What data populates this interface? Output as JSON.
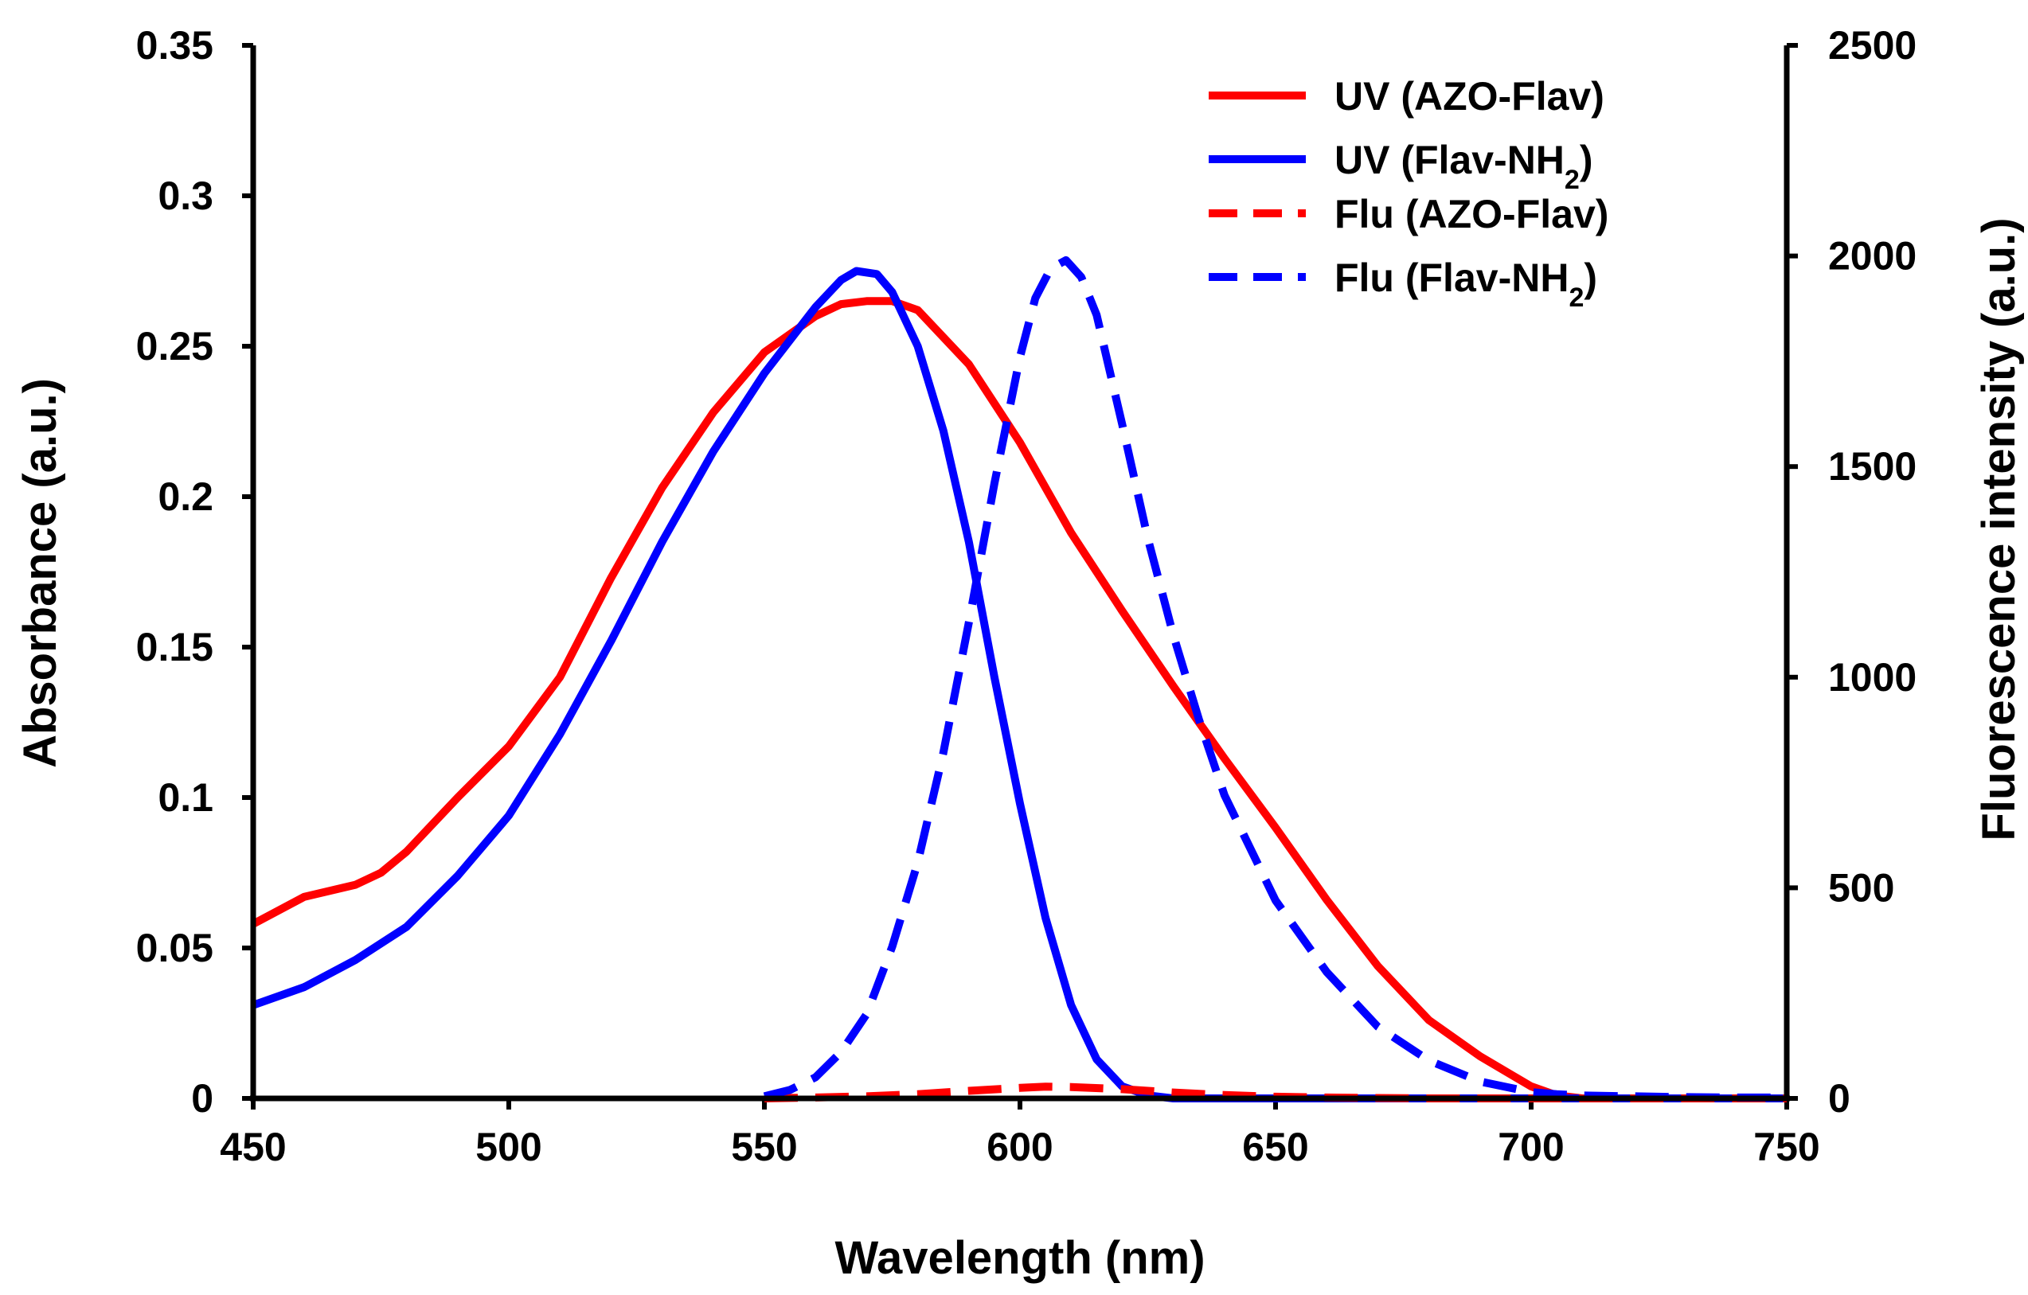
{
  "chart_data": {
    "type": "line",
    "title": "",
    "xlabel": "Wavelength (nm)",
    "ylabel": "Absorbance (a.u.)",
    "y2label": "Fluorescence intensity (a.u.)",
    "xlim": [
      450,
      750
    ],
    "ylim": [
      0,
      0.35
    ],
    "y2lim": [
      0,
      2500
    ],
    "x_ticks": [
      "450",
      "500",
      "550",
      "600",
      "650",
      "700",
      "750"
    ],
    "y_ticks": [
      "0",
      "0.05",
      "0.1",
      "0.15",
      "0.2",
      "0.25",
      "0.3",
      "0.35"
    ],
    "y2_ticks": [
      "0",
      "500",
      "1000",
      "1500",
      "2000",
      "2500"
    ],
    "legend_position": "top-right",
    "series": [
      {
        "name": "UV (AZO-Flav)",
        "legend_main": "UV (AZO-Flav)",
        "legend_sub": "",
        "legend_tail": "",
        "axis": "left",
        "color": "#ff0000",
        "dash": "solid",
        "x": [
          450,
          460,
          470,
          475,
          480,
          490,
          500,
          510,
          520,
          530,
          540,
          550,
          560,
          565,
          570,
          575,
          580,
          590,
          600,
          610,
          620,
          630,
          640,
          650,
          660,
          670,
          680,
          690,
          700,
          705,
          710,
          720,
          730,
          740,
          750
        ],
        "y": [
          0.058,
          0.067,
          0.071,
          0.075,
          0.082,
          0.1,
          0.117,
          0.14,
          0.173,
          0.203,
          0.228,
          0.248,
          0.26,
          0.264,
          0.265,
          0.265,
          0.262,
          0.244,
          0.218,
          0.188,
          0.162,
          0.137,
          0.113,
          0.09,
          0.066,
          0.044,
          0.026,
          0.014,
          0.004,
          0.001,
          0.0,
          0.0,
          0.0,
          0.0,
          0.0
        ]
      },
      {
        "name": "UV (Flav-NH2)",
        "legend_main": "UV (Flav-NH",
        "legend_sub": "2",
        "legend_tail": ")",
        "axis": "left",
        "color": "#0000ff",
        "dash": "solid",
        "x": [
          450,
          460,
          470,
          480,
          490,
          500,
          510,
          520,
          530,
          540,
          550,
          560,
          565,
          568,
          572,
          575,
          580,
          585,
          590,
          595,
          600,
          605,
          610,
          615,
          620,
          625,
          630,
          640,
          650,
          700,
          750
        ],
        "y": [
          0.031,
          0.037,
          0.046,
          0.057,
          0.074,
          0.094,
          0.121,
          0.152,
          0.185,
          0.215,
          0.241,
          0.263,
          0.272,
          0.275,
          0.274,
          0.268,
          0.25,
          0.222,
          0.185,
          0.14,
          0.098,
          0.06,
          0.031,
          0.013,
          0.004,
          0.001,
          0.0,
          0.0,
          0.0,
          0.0,
          0.0
        ]
      },
      {
        "name": "Flu (AZO-Flav)",
        "legend_main": "Flu (AZO-Flav)",
        "legend_sub": "",
        "legend_tail": "",
        "axis": "right",
        "color": "#ff0000",
        "dash": "dashed",
        "x": [
          550,
          560,
          570,
          580,
          590,
          600,
          605,
          610,
          620,
          630,
          640,
          650,
          660,
          670,
          680,
          690,
          700,
          710,
          720,
          730,
          740,
          750
        ],
        "y": [
          0,
          2,
          5,
          10,
          18,
          25,
          28,
          27,
          22,
          14,
          8,
          4,
          2,
          1,
          0,
          0,
          0,
          0,
          0,
          0,
          0,
          0
        ]
      },
      {
        "name": "Flu (Flav-NH2)",
        "legend_main": "Flu (Flav-NH",
        "legend_sub": "2",
        "legend_tail": ")",
        "axis": "right",
        "color": "#0000ff",
        "dash": "dashed",
        "x": [
          550,
          555,
          560,
          565,
          570,
          575,
          580,
          585,
          590,
          595,
          600,
          603,
          606,
          609,
          612,
          615,
          620,
          625,
          630,
          635,
          640,
          650,
          660,
          670,
          680,
          690,
          700,
          705,
          710,
          720,
          730,
          740,
          750
        ],
        "y": [
          5,
          20,
          50,
          110,
          200,
          360,
          560,
          820,
          1130,
          1460,
          1760,
          1900,
          1970,
          1990,
          1950,
          1860,
          1600,
          1330,
          1100,
          900,
          720,
          470,
          300,
          170,
          90,
          40,
          15,
          10,
          7,
          5,
          3,
          2,
          2
        ]
      }
    ]
  }
}
